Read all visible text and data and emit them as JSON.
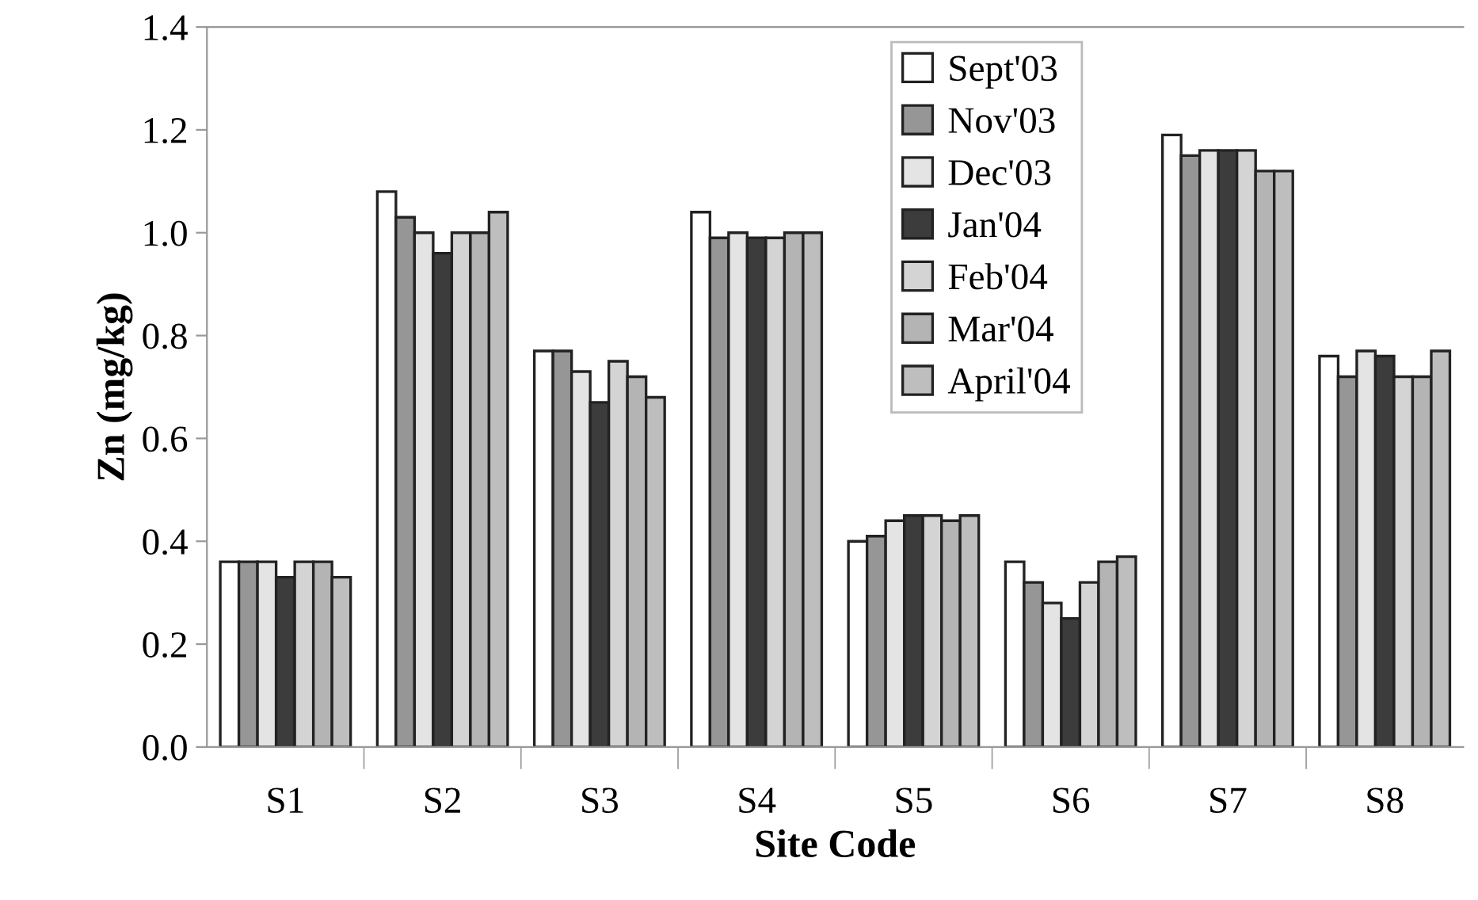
{
  "chart_data": {
    "type": "bar",
    "xlabel": "Site Code",
    "ylabel": "Zn (mg/kg)",
    "categories": [
      "S1",
      "S2",
      "S3",
      "S4",
      "S5",
      "S6",
      "S7",
      "S8"
    ],
    "series": [
      {
        "name": "Sept'03",
        "color": "#ffffff",
        "values": [
          0.36,
          1.08,
          0.77,
          1.04,
          0.4,
          0.36,
          1.19,
          0.76
        ]
      },
      {
        "name": "Nov'03",
        "color": "#969696",
        "values": [
          0.36,
          1.03,
          0.77,
          0.99,
          0.41,
          0.32,
          1.15,
          0.72
        ]
      },
      {
        "name": "Dec'03",
        "color": "#e4e4e4",
        "values": [
          0.36,
          1.0,
          0.73,
          1.0,
          0.44,
          0.28,
          1.16,
          0.77
        ]
      },
      {
        "name": "Jan'04",
        "color": "#3c3c3c",
        "values": [
          0.33,
          0.96,
          0.67,
          0.99,
          0.45,
          0.25,
          1.16,
          0.76
        ]
      },
      {
        "name": "Feb'04",
        "color": "#d4d4d4",
        "values": [
          0.36,
          1.0,
          0.75,
          0.99,
          0.45,
          0.32,
          1.16,
          0.72
        ]
      },
      {
        "name": "Mar'04",
        "color": "#b4b4b4",
        "values": [
          0.36,
          1.0,
          0.72,
          1.0,
          0.44,
          0.36,
          1.12,
          0.72
        ]
      },
      {
        "name": "April'04",
        "color": "#bebebe",
        "values": [
          0.33,
          1.04,
          0.68,
          1.0,
          0.45,
          0.37,
          1.12,
          0.77
        ]
      }
    ],
    "ylim": [
      0,
      1.4
    ],
    "yticks": [
      {
        "value": 0,
        "label": "0.0"
      },
      {
        "value": 0.2,
        "label": "0.2"
      },
      {
        "value": 0.4,
        "label": "0.4"
      },
      {
        "value": 0.6,
        "label": "0.6"
      },
      {
        "value": 0.8,
        "label": "0.8"
      },
      {
        "value": 1.0,
        "label": "1.0"
      },
      {
        "value": 1.2,
        "label": "1.2"
      },
      {
        "value": 1.4,
        "label": "1.4"
      }
    ],
    "grid": false,
    "legend": "top"
  }
}
